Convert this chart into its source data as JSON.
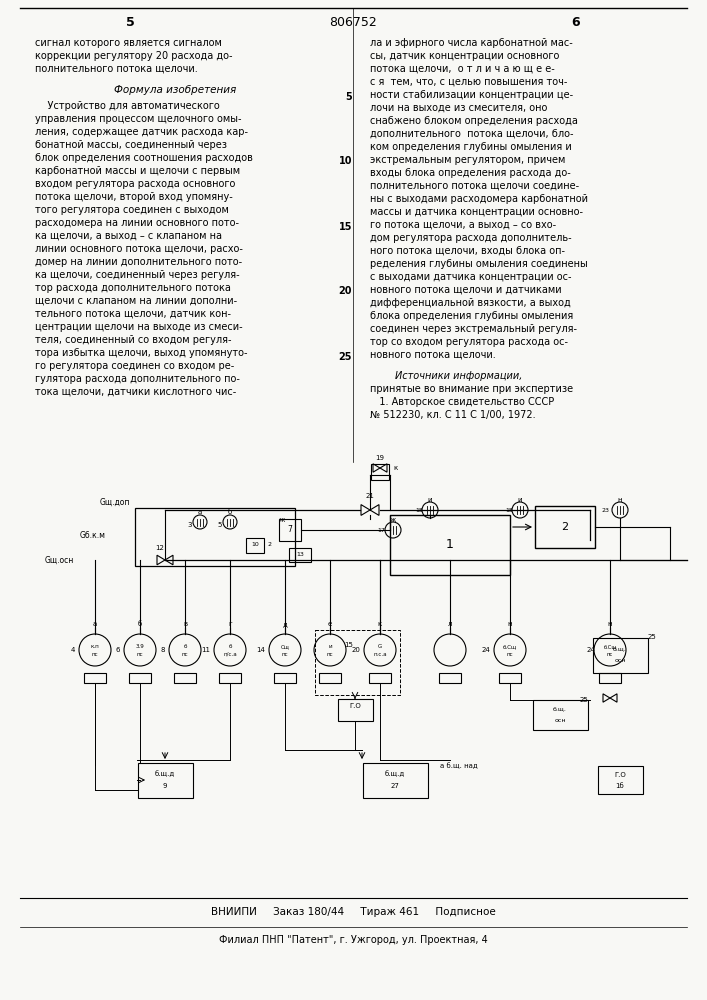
{
  "page_number_center": "806752",
  "page_number_left": "5",
  "page_number_right": "6",
  "bg_color": "#f8f8f5",
  "left_column_lines": [
    "сигнал которого является сигналом",
    "коррекции регулятору 20 расхода до-",
    "полнительного потока щелочи."
  ],
  "formula_header": "Формула изобретения",
  "formula_body_lines": [
    "    Устройство для автоматического",
    "управления процессом щелочного омы-",
    "ления, содержащее датчик расхода кар-",
    "бонатной массы, соединенный через",
    "блок определения соотношения расходов",
    "карбонатной массы и щелочи с первым",
    "входом регулятора расхода основного",
    "потока щелочи, второй вход упомяну-",
    "того регулятора соединен с выходом",
    "расходомера на линии основного пото-",
    "ка щелочи, а выход – с клапаном на",
    "линии основного потока щелочи, расхо-",
    "домер на линии дополнительного пото-",
    "ка щелочи, соединенный через регуля-",
    "тор расхода дополнительного потока",
    "щелочи с клапаном на линии дополни-",
    "тельного потока щелочи, датчик кон-",
    "центрации щелочи на выходе из смеси-",
    "теля, соединенный со входом регуля-",
    "тора избытка щелочи, выход упомянуто-",
    "го регулятора соединен со входом ре-",
    "гулятора расхода дополнительного по-",
    "тока щелочи, датчики кислотного чис-"
  ],
  "right_column_lines": [
    "ла и эфирного числа карбонатной мас-",
    "сы, датчик концентрации основного",
    "потока щелочи,  о т л и ч а ю щ е е-",
    "с я  тем, что, с целью повышения точ-",
    "ности стабилизации концентрации це-",
    "лочи на выходе из смесителя, оно",
    "снабжено блоком определения расхода",
    "дополнительного  потока щелочи, бло-",
    "ком определения глубины омыления и",
    "экстремальным регулятором, причем",
    "входы блока определения расхода до-",
    "полнительного потока щелочи соедине-",
    "ны с выходами расходомера карбонатной",
    "массы и датчика концентрации основно-",
    "го потока щелочи, а выход – со вхо-",
    "дом регулятора расхода дополнитель-",
    "ного потока щелочи, входы блока оп-",
    "ределения глубины омыления соединены",
    "с выходами датчика концентрации ос-",
    "новного потока щелочи и датчиками",
    "дифференциальной вязкости, а выход",
    "блока определения глубины омыления",
    "соединен через экстремальный регуля-",
    "тор со входом регулятора расхода ос-",
    "новного потока щелочи."
  ],
  "right_num_labels": [
    [
      4,
      "5"
    ],
    [
      9,
      "10"
    ],
    [
      14,
      "15"
    ],
    [
      19,
      "20"
    ],
    [
      24,
      "25"
    ]
  ],
  "sources_header": "        Источники информации,",
  "sources_lines": [
    "принятые во внимание при экспертизе",
    "   1. Авторское свидетельство СССР",
    "№ 512230, кл. С 11 С 1/00, 1972."
  ],
  "footer_line1": "ВНИИПИ     Заказ 180/44     Тираж 461     Подписное",
  "footer_line2": "Филиал ПНП \"Патент\", г. Ужгород, ул. Проектная, 4"
}
